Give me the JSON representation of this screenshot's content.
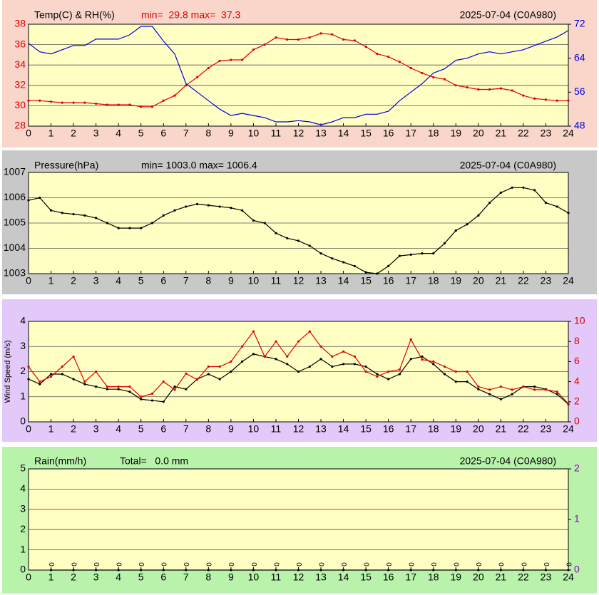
{
  "chart_data": [
    {
      "type": "line",
      "title": "Temp(C) & RH(%)",
      "subtitle": "min=  29.8 max=  37.3",
      "subtitle_color": "#e00000",
      "annotation": "2025-07-04 (C0A980)",
      "background": "#f9d6c9",
      "plot_background": "#ffffc4",
      "x": [
        0,
        0.5,
        1,
        1.5,
        2,
        2.5,
        3,
        3.5,
        4,
        4.5,
        5,
        5.5,
        6,
        6.5,
        7,
        7.5,
        8,
        8.5,
        9,
        9.5,
        10,
        10.5,
        11,
        11.5,
        12,
        12.5,
        13,
        13.5,
        14,
        14.5,
        15,
        15.5,
        16,
        16.5,
        17,
        17.5,
        18,
        18.5,
        19,
        19.5,
        20,
        20.5,
        21,
        21.5,
        22,
        22.5,
        23,
        23.5,
        24
      ],
      "xlim": [
        0,
        24
      ],
      "xticks": [
        0,
        1,
        2,
        3,
        4,
        5,
        6,
        7,
        8,
        9,
        10,
        11,
        12,
        13,
        14,
        15,
        16,
        17,
        18,
        19,
        20,
        21,
        22,
        23,
        24
      ],
      "ylim": [
        28,
        38
      ],
      "yticks": [
        28,
        30,
        32,
        34,
        36,
        38
      ],
      "ycolor": "#e00000",
      "y2lim": [
        48,
        72
      ],
      "y2ticks": [
        48,
        56,
        64,
        72
      ],
      "y2color": "#0000e0",
      "series": [
        {
          "color": "#e00000",
          "markers": true,
          "values": [
            30.5,
            30.5,
            30.4,
            30.3,
            30.3,
            30.3,
            30.2,
            30.1,
            30.1,
            30.1,
            29.9,
            29.9,
            30.5,
            31.0,
            32.0,
            32.8,
            33.7,
            34.4,
            34.5,
            34.5,
            35.5,
            36.0,
            36.7,
            36.5,
            36.5,
            36.7,
            37.1,
            37.0,
            36.5,
            36.4,
            35.8,
            35.1,
            34.8,
            34.3,
            33.7,
            33.2,
            32.8,
            32.6,
            32.0,
            31.8,
            31.6,
            31.6,
            31.7,
            31.5,
            31.0,
            30.7,
            30.6,
            30.5,
            30.5
          ]
        },
        {
          "color": "#0000e0",
          "markers": false,
          "axis": "y2",
          "values": [
            67.5,
            65.5,
            65,
            66,
            67,
            67,
            68.5,
            68.5,
            68.5,
            69.5,
            71.5,
            71.5,
            68,
            65,
            58,
            56,
            54,
            52,
            50.5,
            51,
            50.5,
            50,
            49,
            49,
            49.3,
            49,
            48.3,
            49,
            50,
            50,
            50.8,
            50.8,
            51.5,
            54,
            56,
            58,
            60.5,
            61.5,
            63.5,
            64,
            65,
            65.5,
            65,
            65.5,
            66,
            67,
            68,
            69,
            70.5
          ]
        }
      ]
    },
    {
      "type": "line",
      "title": "Pressure(hPa)",
      "subtitle": "min= 1003.0 max= 1006.4",
      "subtitle_color": "#000000",
      "annotation": "2025-07-04 (C0A980)",
      "background": "#c8c8c8",
      "plot_background": "#ffffc4",
      "x": [
        0,
        0.5,
        1,
        1.5,
        2,
        2.5,
        3,
        3.5,
        4,
        4.5,
        5,
        5.5,
        6,
        6.5,
        7,
        7.5,
        8,
        8.5,
        9,
        9.5,
        10,
        10.5,
        11,
        11.5,
        12,
        12.5,
        13,
        13.5,
        14,
        14.5,
        15,
        15.5,
        16,
        16.5,
        17,
        17.5,
        18,
        18.5,
        19,
        19.5,
        20,
        20.5,
        21,
        21.5,
        22,
        22.5,
        23,
        23.5,
        24
      ],
      "xlim": [
        0,
        24
      ],
      "xticks": [
        0,
        1,
        2,
        3,
        4,
        5,
        6,
        7,
        8,
        9,
        10,
        11,
        12,
        13,
        14,
        15,
        16,
        17,
        18,
        19,
        20,
        21,
        22,
        23,
        24
      ],
      "ylim": [
        1003,
        1007
      ],
      "yticks": [
        1003,
        1004,
        1005,
        1006,
        1007
      ],
      "ycolor": "#000000",
      "series": [
        {
          "color": "#000000",
          "markers": true,
          "values": [
            1005.9,
            1006.0,
            1005.5,
            1005.4,
            1005.35,
            1005.3,
            1005.2,
            1005.0,
            1004.8,
            1004.8,
            1004.8,
            1005.0,
            1005.3,
            1005.5,
            1005.65,
            1005.75,
            1005.7,
            1005.65,
            1005.6,
            1005.5,
            1005.1,
            1005.0,
            1004.6,
            1004.4,
            1004.3,
            1004.1,
            1003.8,
            1003.6,
            1003.45,
            1003.3,
            1003.05,
            1003.0,
            1003.3,
            1003.7,
            1003.75,
            1003.8,
            1003.8,
            1004.2,
            1004.7,
            1004.95,
            1005.3,
            1005.8,
            1006.2,
            1006.4,
            1006.4,
            1006.3,
            1005.8,
            1005.65,
            1005.4
          ]
        }
      ]
    },
    {
      "type": "line",
      "ylabel": "Wind Speed (m/s)",
      "background": "#e2c9f9",
      "plot_background": "#ffffc4",
      "x": [
        0,
        0.5,
        1,
        1.5,
        2,
        2.5,
        3,
        3.5,
        4,
        4.5,
        5,
        5.5,
        6,
        6.5,
        7,
        7.5,
        8,
        8.5,
        9,
        9.5,
        10,
        10.5,
        11,
        11.5,
        12,
        12.5,
        13,
        13.5,
        14,
        14.5,
        15,
        15.5,
        16,
        16.5,
        17,
        17.5,
        18,
        18.5,
        19,
        19.5,
        20,
        20.5,
        21,
        21.5,
        22,
        22.5,
        23,
        23.5,
        24
      ],
      "xlim": [
        0,
        24
      ],
      "xticks": [
        0,
        1,
        2,
        3,
        4,
        5,
        6,
        7,
        8,
        9,
        10,
        11,
        12,
        13,
        14,
        15,
        16,
        17,
        18,
        19,
        20,
        21,
        22,
        23,
        24
      ],
      "ylim": [
        0,
        4
      ],
      "yticks": [
        0,
        1,
        2,
        3,
        4
      ],
      "ycolor": "#000000",
      "y2lim": [
        0,
        10
      ],
      "y2ticks": [
        0,
        2,
        4,
        6,
        8,
        10
      ],
      "y2color": "#e00000",
      "series": [
        {
          "color": "#000000",
          "markers": true,
          "values": [
            1.7,
            1.5,
            1.9,
            1.9,
            1.7,
            1.5,
            1.4,
            1.3,
            1.3,
            1.2,
            0.9,
            0.85,
            0.8,
            1.4,
            1.3,
            1.7,
            1.9,
            1.7,
            2.0,
            2.4,
            2.7,
            2.6,
            2.5,
            2.3,
            2.0,
            2.2,
            2.5,
            2.2,
            2.3,
            2.3,
            2.2,
            1.9,
            1.7,
            1.9,
            2.5,
            2.6,
            2.3,
            1.9,
            1.6,
            1.6,
            1.3,
            1.1,
            0.9,
            1.1,
            1.4,
            1.4,
            1.3,
            1.1,
            0.7
          ]
        },
        {
          "color": "#e00000",
          "markers": true,
          "axis": "y2",
          "values": [
            5.5,
            4,
            4.5,
            5.5,
            6.5,
            4,
            5,
            3.5,
            3.5,
            3.5,
            2.5,
            2.8,
            4,
            3.2,
            4.8,
            4.2,
            5.5,
            5.5,
            6,
            7.5,
            9,
            6.5,
            8,
            6.5,
            8,
            9,
            7.5,
            6.5,
            7,
            6.5,
            5,
            4.5,
            5,
            5.2,
            8.2,
            6.2,
            6,
            5.5,
            5,
            5,
            3.5,
            3.2,
            3.5,
            3.2,
            3.5,
            3.2,
            3.2,
            3,
            1.8
          ]
        }
      ]
    },
    {
      "type": "line",
      "title": "Rain(mm/h)",
      "subtitle": "Total=   0.0 mm",
      "subtitle_color": "#000000",
      "annotation": "2025-07-04 (C0A980)",
      "background": "#b9f2ab",
      "plot_background": "#ffffc4",
      "x": [
        1,
        2,
        3,
        4,
        5,
        6,
        7,
        8,
        9,
        10,
        11,
        12,
        13,
        14,
        15,
        16,
        17,
        18,
        19,
        20,
        21,
        22,
        23,
        24
      ],
      "xlim": [
        0,
        24
      ],
      "xticks": [
        0,
        1,
        2,
        3,
        4,
        5,
        6,
        7,
        8,
        9,
        10,
        11,
        12,
        13,
        14,
        15,
        16,
        17,
        18,
        19,
        20,
        21,
        22,
        23,
        24
      ],
      "ylim": [
        0,
        5
      ],
      "yticks": [
        0,
        1,
        2,
        3,
        4,
        5
      ],
      "ycolor": "#000000",
      "y2lim": [
        0,
        2
      ],
      "y2ticks": [
        0,
        1,
        2
      ],
      "y2color": "#9000c0",
      "series": [
        {
          "color": "#000000",
          "markers": true,
          "show_labels": true,
          "values": [
            0,
            0,
            0,
            0,
            0,
            0,
            0,
            0,
            0,
            0,
            0,
            0,
            0,
            0,
            0,
            0,
            0,
            0,
            0,
            0,
            0,
            0,
            0,
            0
          ]
        }
      ]
    }
  ]
}
